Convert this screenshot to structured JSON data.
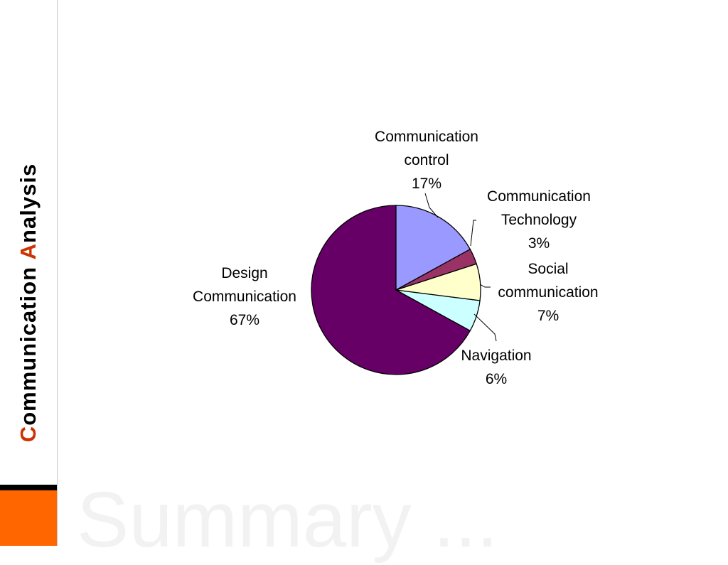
{
  "sidebar_title": [
    "Communication",
    "Analysis"
  ],
  "watermark": "Summary ...",
  "chart_data": {
    "type": "pie",
    "categories": [
      "Communication control",
      "Communication Technology",
      "Social communication",
      "Navigation",
      "Design Communication"
    ],
    "values": [
      17,
      3,
      7,
      6,
      67
    ],
    "value_labels": [
      "17%",
      "3%",
      "7%",
      "6%",
      "67%"
    ],
    "colors": [
      "#9999ff",
      "#993366",
      "#ffffcc",
      "#ccffff",
      "#660066"
    ]
  }
}
